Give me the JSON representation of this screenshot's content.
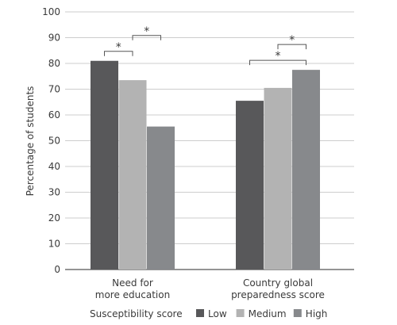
{
  "chart_data": {
    "type": "bar",
    "ylabel": "Percentage of students",
    "ylim": [
      0,
      100
    ],
    "yticks": [
      0,
      10,
      20,
      30,
      40,
      50,
      60,
      70,
      80,
      90,
      100
    ],
    "grid": true,
    "categories": [
      [
        "Need for",
        "more education"
      ],
      [
        "Country global",
        "preparedness score"
      ]
    ],
    "series": [
      {
        "name": "Low",
        "values": [
          81,
          65.5
        ],
        "color": "#58585a"
      },
      {
        "name": "Medium",
        "values": [
          73.5,
          70.5
        ],
        "color": "#b3b3b3"
      },
      {
        "name": "High",
        "values": [
          55.5,
          77.5
        ],
        "color": "#87898c"
      }
    ],
    "legend": {
      "title": "Susceptibility score",
      "placement": "bottom"
    },
    "significance": [
      {
        "category": 0,
        "from": 0,
        "to": 1,
        "label": "*"
      },
      {
        "category": 0,
        "from": 1,
        "to": 2,
        "label": "*"
      },
      {
        "category": 1,
        "from": 0,
        "to": 2,
        "label": "*"
      },
      {
        "category": 1,
        "from": 1,
        "to": 2,
        "label": "*"
      }
    ]
  }
}
